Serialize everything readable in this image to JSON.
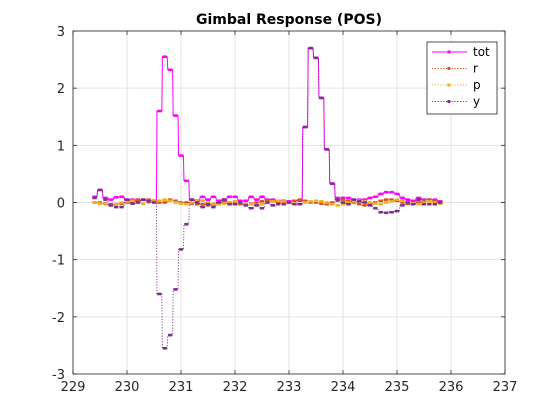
{
  "chart_data": {
    "type": "line",
    "title": "Gimbal Response (POS)",
    "xlabel": "",
    "ylabel": "",
    "xlim": [
      229,
      237
    ],
    "ylim": [
      -3,
      3
    ],
    "xticks": [
      229,
      230,
      231,
      232,
      233,
      234,
      235,
      236,
      237
    ],
    "yticks": [
      -3,
      -2,
      -1,
      0,
      1,
      2,
      3
    ],
    "grid": true,
    "legend_position": "top-right",
    "step": 0.1,
    "series": [
      {
        "name": "tot",
        "color": "#ff00ff",
        "line": "solid",
        "x0": 229.4,
        "values": [
          0.1,
          0.22,
          0.08,
          0.05,
          0.09,
          0.1,
          0.05,
          0.05,
          0.02,
          0.05,
          0.03,
          0.03,
          1.6,
          2.55,
          2.32,
          1.52,
          0.82,
          0.38,
          0.05,
          0.03,
          0.1,
          0.05,
          0.1,
          0.03,
          0.05,
          0.1,
          0.1,
          0.03,
          0.03,
          0.1,
          0.05,
          0.1,
          0.05,
          0.05,
          0.03,
          0.03,
          0.02,
          0.03,
          0.03,
          1.32,
          2.7,
          2.53,
          1.83,
          0.93,
          0.33,
          0.08,
          0.08,
          0.08,
          0.05,
          0.05,
          0.05,
          0.08,
          0.1,
          0.15,
          0.18,
          0.18,
          0.15,
          0.08,
          0.05,
          0.03,
          0.08,
          0.05,
          0.05,
          0.05,
          0.02
        ]
      },
      {
        "name": "r",
        "color": "#d95319",
        "line": "dotted",
        "x0": 229.4,
        "values": [
          0.0,
          0.0,
          -0.02,
          -0.03,
          -0.03,
          -0.02,
          0.0,
          0.02,
          0.05,
          0.05,
          0.05,
          0.03,
          0.0,
          0.0,
          0.05,
          0.03,
          0.0,
          0.0,
          -0.02,
          -0.03,
          -0.03,
          -0.05,
          -0.03,
          0.0,
          0.02,
          0.0,
          -0.02,
          -0.03,
          -0.03,
          -0.02,
          0.0,
          0.02,
          0.03,
          0.02,
          0.0,
          -0.02,
          0.0,
          0.03,
          0.05,
          0.03,
          0.0,
          0.0,
          -0.02,
          -0.03,
          0.0,
          0.03,
          0.05,
          0.03,
          0.0,
          -0.03,
          -0.05,
          -0.03,
          0.0,
          0.03,
          0.05,
          0.05,
          0.03,
          0.0,
          -0.02,
          -0.03,
          0.0,
          0.03,
          0.05,
          0.03,
          0.0
        ]
      },
      {
        "name": "p",
        "color": "#edb120",
        "line": "dotted",
        "x0": 229.4,
        "values": [
          0.0,
          -0.02,
          -0.03,
          -0.05,
          -0.03,
          0.0,
          0.02,
          0.03,
          0.0,
          -0.02,
          0.0,
          0.02,
          0.03,
          0.05,
          0.03,
          0.0,
          -0.02,
          -0.03,
          0.0,
          0.02,
          0.03,
          0.0,
          -0.02,
          -0.03,
          -0.02,
          0.0,
          0.02,
          0.0,
          -0.02,
          -0.03,
          -0.05,
          -0.03,
          0.0,
          0.02,
          0.03,
          0.02,
          0.0,
          -0.02,
          -0.03,
          0.0,
          0.02,
          0.03,
          0.02,
          0.0,
          -0.03,
          -0.05,
          -0.03,
          0.0,
          0.02,
          0.03,
          0.02,
          0.0,
          -0.02,
          -0.03,
          0.0,
          0.02,
          0.05,
          0.03,
          0.0,
          -0.02,
          -0.03,
          0.0,
          0.02,
          0.0,
          -0.02
        ]
      },
      {
        "name": "y",
        "color": "#7e2f8e",
        "line": "dotted",
        "x0": 229.4,
        "values": [
          0.08,
          0.22,
          0.05,
          -0.05,
          -0.08,
          -0.08,
          0.05,
          -0.02,
          0.0,
          0.05,
          0.02,
          0.0,
          -1.6,
          -2.55,
          -2.32,
          -1.52,
          -0.82,
          -0.38,
          0.05,
          0.0,
          -0.08,
          -0.03,
          -0.08,
          0.0,
          0.05,
          -0.03,
          -0.03,
          0.0,
          -0.05,
          -0.1,
          -0.05,
          -0.1,
          0.0,
          -0.05,
          -0.03,
          -0.03,
          0.0,
          -0.03,
          -0.03,
          1.32,
          2.7,
          2.53,
          1.83,
          0.93,
          0.33,
          0.05,
          0.0,
          -0.03,
          0.05,
          0.02,
          0.0,
          -0.05,
          -0.1,
          -0.17,
          -0.18,
          -0.17,
          -0.15,
          -0.05,
          0.0,
          -0.03,
          0.05,
          -0.03,
          -0.03,
          -0.03,
          0.0
        ]
      }
    ]
  }
}
